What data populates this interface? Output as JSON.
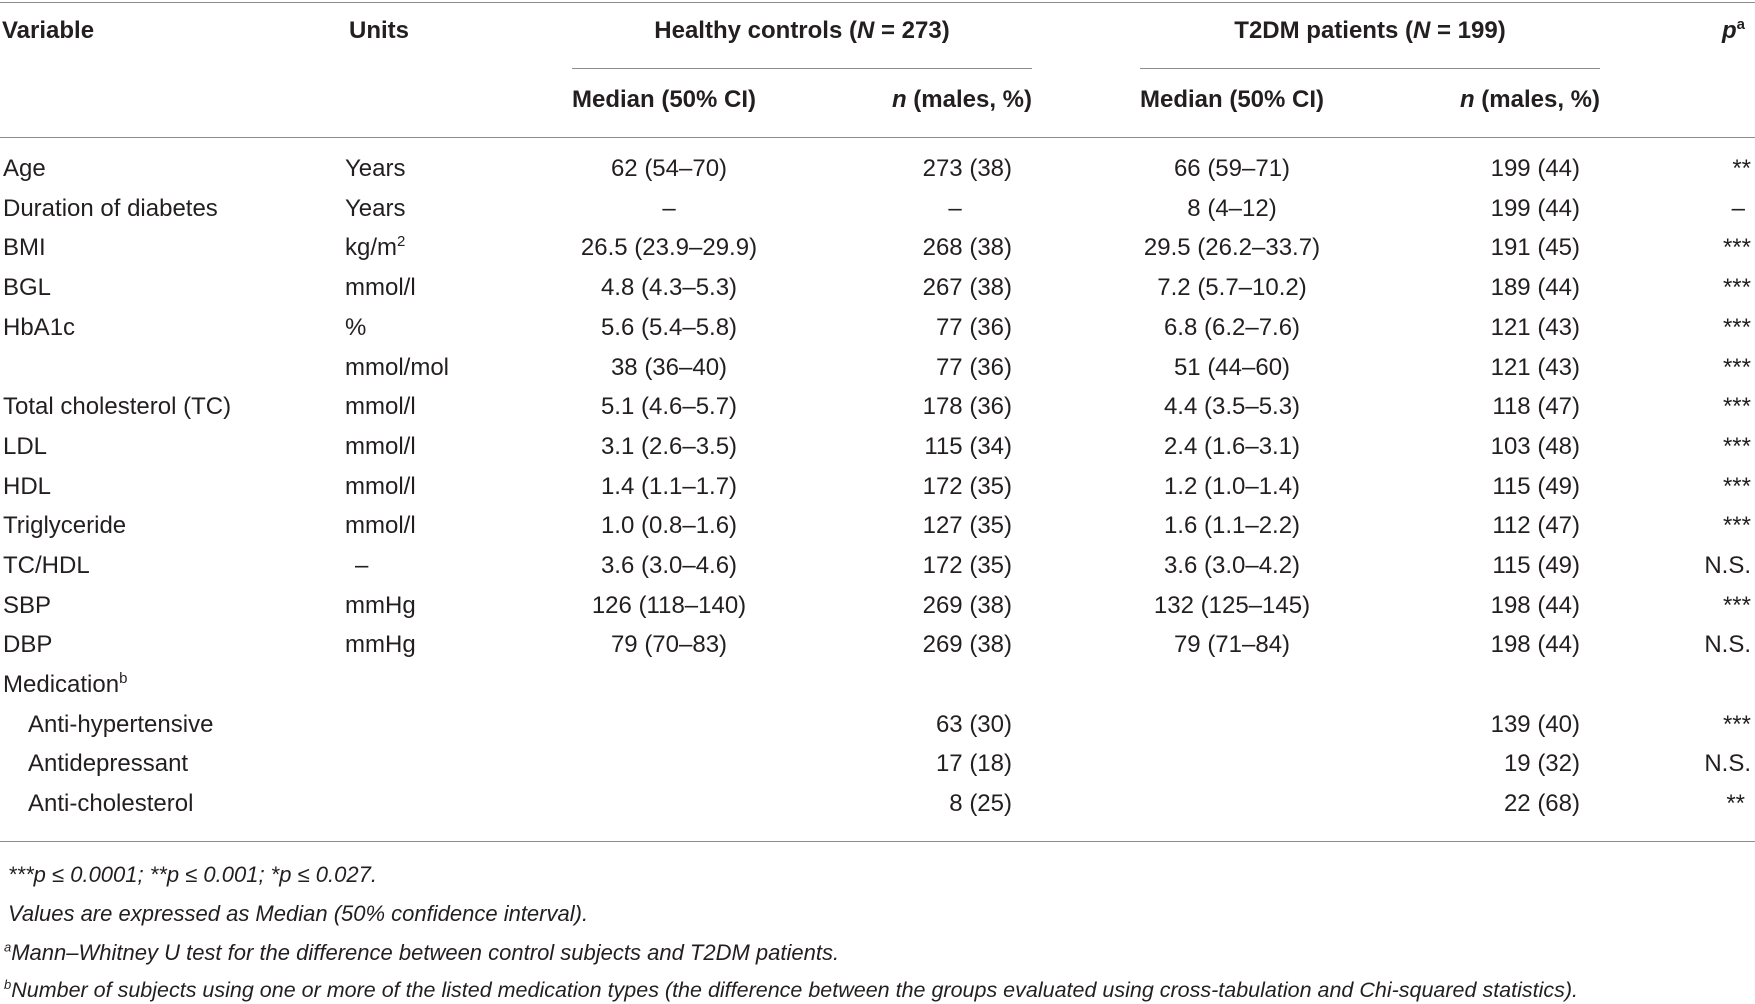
{
  "header": {
    "variable": "Variable",
    "units": "Units",
    "controls_group": "Healthy controls (",
    "controls_n_symbol": "N",
    "controls_n_value": " = 273)",
    "patients_group": "T2DM patients (",
    "patients_n_symbol": "N",
    "patients_n_value": " = 199)",
    "p_symbol": "p",
    "p_sup": "a",
    "median_ci": "Median (50% CI)",
    "n_symbol": "n",
    "n_males": " (males, %)"
  },
  "rows": [
    {
      "variable": "Age",
      "units": "Years",
      "ctrl_median": "62 (54–70)",
      "ctrl_n": "273 (38)",
      "t2dm_median": "66 (59–71)",
      "t2dm_n": "199 (44)",
      "p": "**"
    },
    {
      "variable": "Duration of diabetes",
      "units": "Years",
      "ctrl_median": "–",
      "ctrl_n": "–",
      "t2dm_median": "8 (4–12)",
      "t2dm_n": "199 (44)",
      "p": "–"
    },
    {
      "variable": "BMI",
      "units": "kg/m",
      "units_sup": "2",
      "ctrl_median": "26.5 (23.9–29.9)",
      "ctrl_n": "268 (38)",
      "t2dm_median": "29.5 (26.2–33.7)",
      "t2dm_n": "191 (45)",
      "p": "***"
    },
    {
      "variable": "BGL",
      "units": "mmol/l",
      "ctrl_median": "4.8 (4.3–5.3)",
      "ctrl_n": "267 (38)",
      "t2dm_median": "7.2 (5.7–10.2)",
      "t2dm_n": "189 (44)",
      "p": "***"
    },
    {
      "variable": "HbA1c",
      "units": "%",
      "ctrl_median": "5.6 (5.4–5.8)",
      "ctrl_n": "77 (36)",
      "t2dm_median": "6.8 (6.2–7.6)",
      "t2dm_n": "121 (43)",
      "p": "***"
    },
    {
      "variable": "",
      "units": "mmol/mol",
      "ctrl_median": "38 (36–40)",
      "ctrl_n": "77 (36)",
      "t2dm_median": "51 (44–60)",
      "t2dm_n": "121 (43)",
      "p": "***"
    },
    {
      "variable": "Total cholesterol (TC)",
      "units": "mmol/l",
      "ctrl_median": "5.1 (4.6–5.7)",
      "ctrl_n": "178 (36)",
      "t2dm_median": "4.4 (3.5–5.3)",
      "t2dm_n": "118 (47)",
      "p": "***"
    },
    {
      "variable": "LDL",
      "units": "mmol/l",
      "ctrl_median": "3.1 (2.6–3.5)",
      "ctrl_n": "115 (34)",
      "t2dm_median": "2.4 (1.6–3.1)",
      "t2dm_n": "103 (48)",
      "p": "***"
    },
    {
      "variable": "HDL",
      "units": "mmol/l",
      "ctrl_median": "1.4 (1.1–1.7)",
      "ctrl_n": "172 (35)",
      "t2dm_median": "1.2 (1.0–1.4)",
      "t2dm_n": "115 (49)",
      "p": "***"
    },
    {
      "variable": "Triglyceride",
      "units": "mmol/l",
      "ctrl_median": "1.0 (0.8–1.6)",
      "ctrl_n": "127 (35)",
      "t2dm_median": "1.6 (1.1–2.2)",
      "t2dm_n": "112 (47)",
      "p": "***"
    },
    {
      "variable": "TC/HDL",
      "units": "–",
      "ctrl_median": "3.6 (3.0–4.6)",
      "ctrl_n": "172 (35)",
      "t2dm_median": "3.6 (3.0–4.2)",
      "t2dm_n": "115 (49)",
      "p": "N.S."
    },
    {
      "variable": "SBP",
      "units": "mmHg",
      "ctrl_median": "126 (118–140)",
      "ctrl_n": "269 (38)",
      "t2dm_median": "132 (125–145)",
      "t2dm_n": "198 (44)",
      "p": "***"
    },
    {
      "variable": "DBP",
      "units": "mmHg",
      "ctrl_median": "79 (70–83)",
      "ctrl_n": "269 (38)",
      "t2dm_median": "79 (71–84)",
      "t2dm_n": "198 (44)",
      "p": "N.S."
    }
  ],
  "medication": {
    "label": "Medication",
    "label_sup": "b",
    "items": [
      {
        "name": "Anti-hypertensive",
        "ctrl_n": "63 (30)",
        "t2dm_n": "139 (40)",
        "p": "***"
      },
      {
        "name": "Antidepressant",
        "ctrl_n": "17 (18)",
        "t2dm_n": "19 (32)",
        "p": "N.S."
      },
      {
        "name": "Anti-cholesterol",
        "ctrl_n": "8 (25)",
        "t2dm_n": "22 (68)",
        "p": "**"
      }
    ]
  },
  "footnotes": {
    "significance": "***p ≤ 0.0001; **p ≤ 0.001; *p ≤ 0.027.",
    "values_note": "Values are expressed as Median (50% confidence interval).",
    "a_marker": "a",
    "a_text": "Mann–Whitney U test for the difference between control subjects and T2DM patients.",
    "b_marker": "b",
    "b_text": "Number of subjects using one or more of the listed medication types (the difference between the groups evaluated using cross-tabulation and Chi-squared statistics)."
  }
}
